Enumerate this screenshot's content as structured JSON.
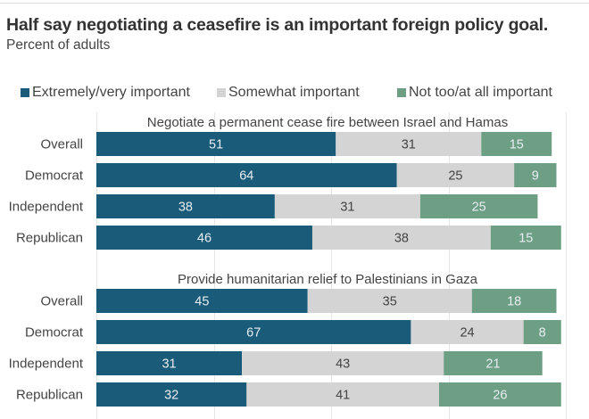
{
  "chart_data": {
    "type": "bar",
    "orientation": "horizontal",
    "stacked": true,
    "title": "Half say negotiating a ceasefire is an important foreign policy goal.",
    "subtitle": "Percent of adults",
    "xlabel": "",
    "ylabel": "",
    "xlim": [
      0,
      100
    ],
    "grid": true,
    "gridlines_at": [
      0,
      25,
      50,
      75,
      100
    ],
    "legend_position": "top",
    "legend": [
      {
        "name": "Extremely/very important",
        "color": "#1a5b7a"
      },
      {
        "name": "Somewhat important",
        "color": "#d4d4d4"
      },
      {
        "name": "Not too/at all important",
        "color": "#6d9f84"
      }
    ],
    "groups": [
      {
        "title": "Negotiate a permanent cease fire between Israel and Hamas",
        "categories": [
          "Overall",
          "Democrat",
          "Independent",
          "Republican"
        ],
        "series": [
          {
            "name": "Extremely/very important",
            "values": [
              51,
              64,
              38,
              46
            ]
          },
          {
            "name": "Somewhat important",
            "values": [
              31,
              25,
              31,
              38
            ]
          },
          {
            "name": "Not too/at all important",
            "values": [
              15,
              9,
              25,
              15
            ]
          }
        ]
      },
      {
        "title": "Provide humanitarian relief to Palestinians in Gaza",
        "categories": [
          "Overall",
          "Democrat",
          "Independent",
          "Republican"
        ],
        "series": [
          {
            "name": "Extremely/very important",
            "values": [
              45,
              67,
              31,
              32
            ]
          },
          {
            "name": "Somewhat important",
            "values": [
              35,
              24,
              43,
              41
            ]
          },
          {
            "name": "Not too/at all important",
            "values": [
              18,
              8,
              21,
              26
            ]
          }
        ]
      }
    ]
  },
  "colors": {
    "label_dark_bg": "#e8eef2",
    "label_light_bg": "#444444",
    "grid": "#e6e6e6",
    "text": "#444444"
  }
}
